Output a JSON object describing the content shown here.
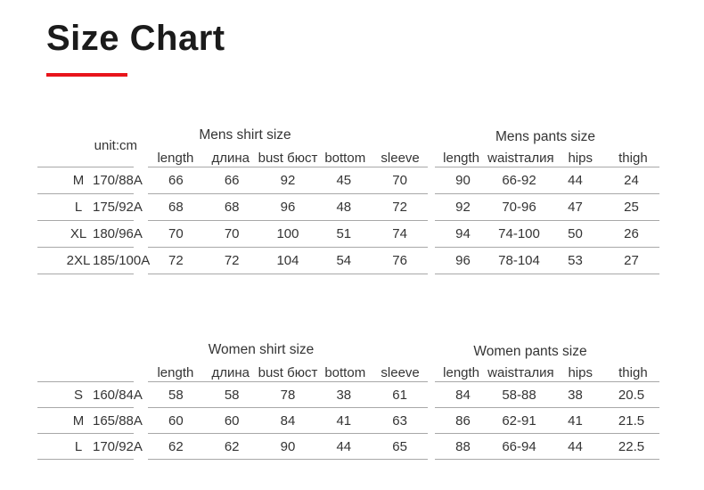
{
  "page": {
    "title": "Size Chart",
    "accent_color": "#e8141b",
    "line_color": "#a8a8a8"
  },
  "sections": [
    {
      "name": "mens",
      "unit_label": "unit:cm",
      "size_rows": [
        [
          "M",
          "170/88A"
        ],
        [
          "L",
          "175/92A"
        ],
        [
          "XL",
          "180/96A"
        ],
        [
          "2XL",
          "185/100A"
        ]
      ],
      "shirt": {
        "title": "Mens shirt size",
        "columns": [
          "length",
          "длина",
          "bust бюст",
          "bottom",
          "sleeve"
        ],
        "rows": [
          [
            "66",
            "66",
            "92",
            "45",
            "70"
          ],
          [
            "68",
            "68",
            "96",
            "48",
            "72"
          ],
          [
            "70",
            "70",
            "100",
            "51",
            "74"
          ],
          [
            "72",
            "72",
            "104",
            "54",
            "76"
          ]
        ]
      },
      "pants": {
        "title": "Mens pants size",
        "columns": [
          "length",
          "waistталия",
          "hips",
          "thigh"
        ],
        "rows": [
          [
            "90",
            "66-92",
            "44",
            "24"
          ],
          [
            "92",
            "70-96",
            "47",
            "25"
          ],
          [
            "94",
            "74-100",
            "50",
            "26"
          ],
          [
            "96",
            "78-104",
            "53",
            "27"
          ]
        ]
      }
    },
    {
      "name": "women",
      "unit_label": "",
      "size_rows": [
        [
          "S",
          "160/84A"
        ],
        [
          "M",
          "165/88A"
        ],
        [
          "L",
          "170/92A"
        ]
      ],
      "shirt": {
        "title": "Women shirt size",
        "columns": [
          "length",
          "длина",
          "bust бюст",
          "bottom",
          "sleeve"
        ],
        "rows": [
          [
            "58",
            "58",
            "78",
            "38",
            "61"
          ],
          [
            "60",
            "60",
            "84",
            "41",
            "63"
          ],
          [
            "62",
            "62",
            "90",
            "44",
            "65"
          ]
        ]
      },
      "pants": {
        "title": "Women pants size",
        "columns": [
          "length",
          "waistталия",
          "hips",
          "thigh"
        ],
        "rows": [
          [
            "84",
            "58-88",
            "38",
            "20.5"
          ],
          [
            "86",
            "62-91",
            "41",
            "21.5"
          ],
          [
            "88",
            "66-94",
            "44",
            "22.5"
          ]
        ]
      }
    }
  ]
}
